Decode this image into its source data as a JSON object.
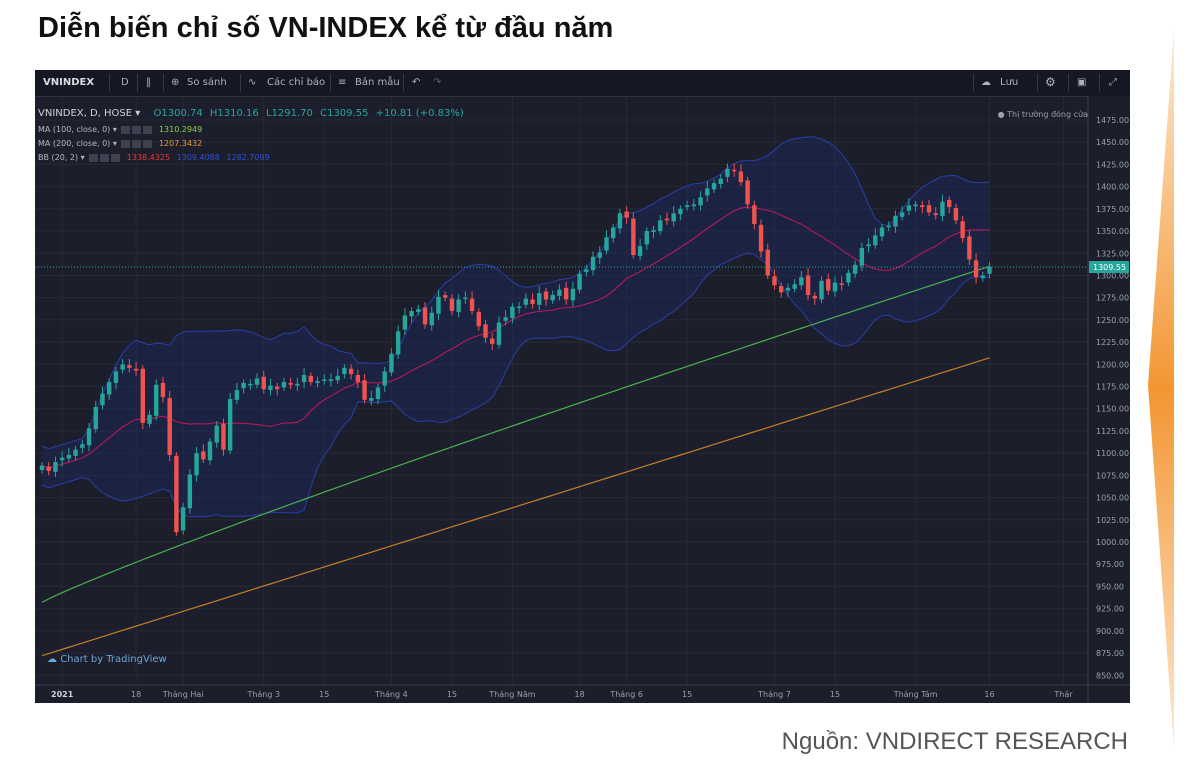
{
  "title": "Diễn biến chỉ số VN-INDEX kể từ đầu năm",
  "source": "Nguồn: VNDIRECT RESEARCH",
  "toolbar": {
    "symbol": "VNINDEX",
    "interval": "D",
    "compare": "So sánh",
    "indicators": "Các chỉ báo",
    "templates": "Bản mẫu",
    "save": "Lưu",
    "icons": [
      "candles-icon",
      "compare-icon",
      "indicators-icon",
      "templates-icon",
      "undo-icon",
      "redo-icon",
      "cloud-icon",
      "gear-icon",
      "camera-icon",
      "fullscreen-icon"
    ]
  },
  "legend": {
    "main": "VNINDEX, D, HOSE",
    "ohlc": {
      "o": "O1300.74",
      "h": "H1310.16",
      "l": "L1291.70",
      "c": "C1309.55",
      "chg": "+10.81 (+0.83%)"
    },
    "ma100": {
      "label": "MA (100, close, 0)",
      "value": "1310.2949"
    },
    "ma200": {
      "label": "MA (200, close, 0)",
      "value": "1207.3432"
    },
    "bb": {
      "label": "BB (20, 2)",
      "v1": "1338.4325",
      "v2": "1309.4088",
      "v3": "1282.7099"
    },
    "market_status": "Thị trường đóng cửa",
    "tv_badge": "Chart by TradingView"
  },
  "colors": {
    "up": "#26a69a",
    "down": "#ef5350",
    "ma100": "#4caf50",
    "ma200": "#c47f2c",
    "bb_basis": "#c2185b",
    "bb_band": "#283ea8",
    "last_price": "#26a69a"
  },
  "chart_data": {
    "type": "candlestick",
    "y_ticks": [
      850,
      875,
      900,
      925,
      950,
      975,
      1000,
      1025,
      1050,
      1075,
      1100,
      1125,
      1150,
      1175,
      1200,
      1225,
      1250,
      1275,
      1300,
      1325,
      1350,
      1375,
      1400,
      1425,
      1450,
      1475
    ],
    "x_ticks": [
      {
        "label": "2021",
        "i": 3
      },
      {
        "label": "18",
        "i": 14
      },
      {
        "label": "Tháng Hai",
        "i": 21
      },
      {
        "label": "Tháng 3",
        "i": 33
      },
      {
        "label": "15",
        "i": 42
      },
      {
        "label": "Tháng 4",
        "i": 52
      },
      {
        "label": "15",
        "i": 61
      },
      {
        "label": "Tháng Năm",
        "i": 70
      },
      {
        "label": "18",
        "i": 80
      },
      {
        "label": "Tháng 6",
        "i": 87
      },
      {
        "label": "15",
        "i": 96
      },
      {
        "label": "Tháng 7",
        "i": 109
      },
      {
        "label": "15",
        "i": 118
      },
      {
        "label": "Tháng Tám",
        "i": 130
      },
      {
        "label": "16",
        "i": 141
      },
      {
        "label": "Thár",
        "i": 152
      }
    ],
    "last_price": "1309.55",
    "last_close": 1309.55,
    "closes": [
      1086,
      1080,
      1090,
      1095,
      1098,
      1104,
      1110,
      1128,
      1152,
      1167,
      1180,
      1192,
      1200,
      1196,
      1193,
      1134,
      1143,
      1177,
      1163,
      1098,
      1011,
      1039,
      1076,
      1100,
      1093,
      1113,
      1131,
      1104,
      1161,
      1171,
      1179,
      1178,
      1184,
      1172,
      1176,
      1172,
      1180,
      1177,
      1178,
      1188,
      1180,
      1181,
      1183,
      1183,
      1187,
      1196,
      1189,
      1180,
      1160,
      1162,
      1174,
      1192,
      1212,
      1237,
      1255,
      1260,
      1262,
      1245,
      1258,
      1276,
      1275,
      1260,
      1273,
      1275,
      1260,
      1243,
      1230,
      1223,
      1247,
      1253,
      1265,
      1265,
      1274,
      1268,
      1280,
      1273,
      1278,
      1284,
      1273,
      1285,
      1302,
      1307,
      1321,
      1326,
      1343,
      1354,
      1370,
      1365,
      1323,
      1333,
      1350,
      1351,
      1362,
      1362,
      1370,
      1375,
      1379,
      1380,
      1388,
      1398,
      1404,
      1409,
      1420,
      1418,
      1405,
      1380,
      1358,
      1327,
      1300,
      1289,
      1281,
      1286,
      1290,
      1298,
      1278,
      1274,
      1294,
      1283,
      1292,
      1290,
      1303,
      1312,
      1331,
      1335,
      1345,
      1354,
      1356,
      1367,
      1371,
      1379,
      1380,
      1377,
      1371,
      1368,
      1383,
      1377,
      1362,
      1342,
      1318,
      1298,
      1300,
      1310
    ]
  }
}
